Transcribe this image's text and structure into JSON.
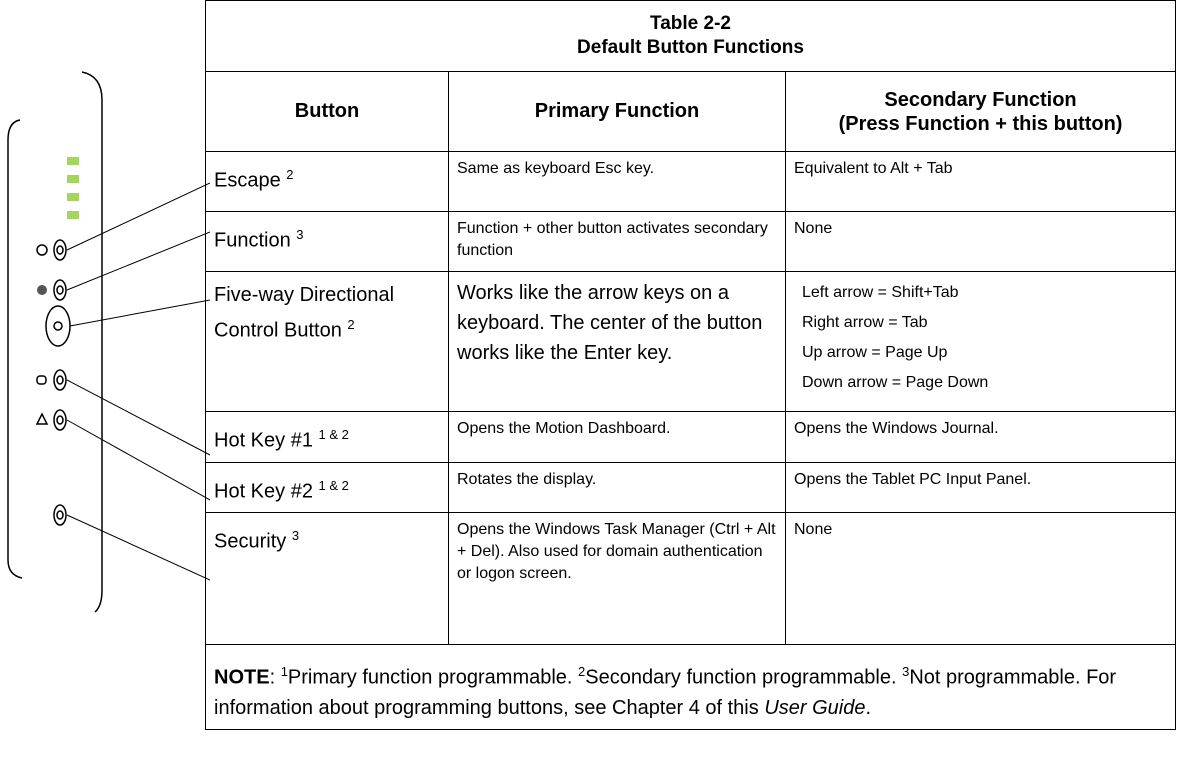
{
  "table": {
    "title": "Table 2-2",
    "subtitle": "Default Button Functions",
    "headers": {
      "button": "Button",
      "primary": "Primary Function",
      "secondary": "Secondary Function",
      "secondary_note": "(Press Function + this button)"
    },
    "rows": [
      {
        "button": "Escape",
        "sup": "2",
        "primary": "Same as keyboard Esc key.",
        "secondary": [
          "Equivalent to Alt + Tab"
        ]
      },
      {
        "button": "Function",
        "sup": "3",
        "primary": "Function + other button activates secondary function",
        "secondary": [
          "None"
        ]
      },
      {
        "button": "Five-way Directional Control Button",
        "sup": "2",
        "primary": "Works like the arrow keys on a keyboard. The center of the button works like the Enter key.",
        "large": true,
        "secondary": [
          "Left arrow = Shift+Tab",
          "Right arrow = Tab",
          "Up arrow = Page Up",
          "Down arrow = Page Down"
        ]
      },
      {
        "button": "Hot Key #1",
        "sup": "1 & 2",
        "primary": "Opens the Motion Dashboard.",
        "secondary": [
          "Opens the Windows Journal."
        ]
      },
      {
        "button": "Hot Key #2",
        "sup": "1 & 2",
        "primary": "Rotates the display.",
        "secondary": [
          "Opens the Tablet PC Input Panel."
        ]
      },
      {
        "button": "Security",
        "sup": "3",
        "primary": "Opens the Windows Task Manager (Ctrl + Alt + Del). Also used for domain authentication or logon screen.",
        "secondary": [
          "None"
        ]
      }
    ],
    "note": [
      {
        "text": "NOTE",
        "style": "bold"
      },
      {
        "text": ": "
      },
      {
        "text": "1",
        "style": "sup"
      },
      {
        "text": "Primary function programmable. "
      },
      {
        "text": "2",
        "style": "sup"
      },
      {
        "text": "Secondary function programmable. "
      },
      {
        "text": "3",
        "style": "sup"
      },
      {
        "text": "Not programmable. For information about programming buttons, see Chapter 4 of this "
      },
      {
        "text": "User Guide",
        "style": "italic"
      },
      {
        "text": "."
      }
    ]
  }
}
